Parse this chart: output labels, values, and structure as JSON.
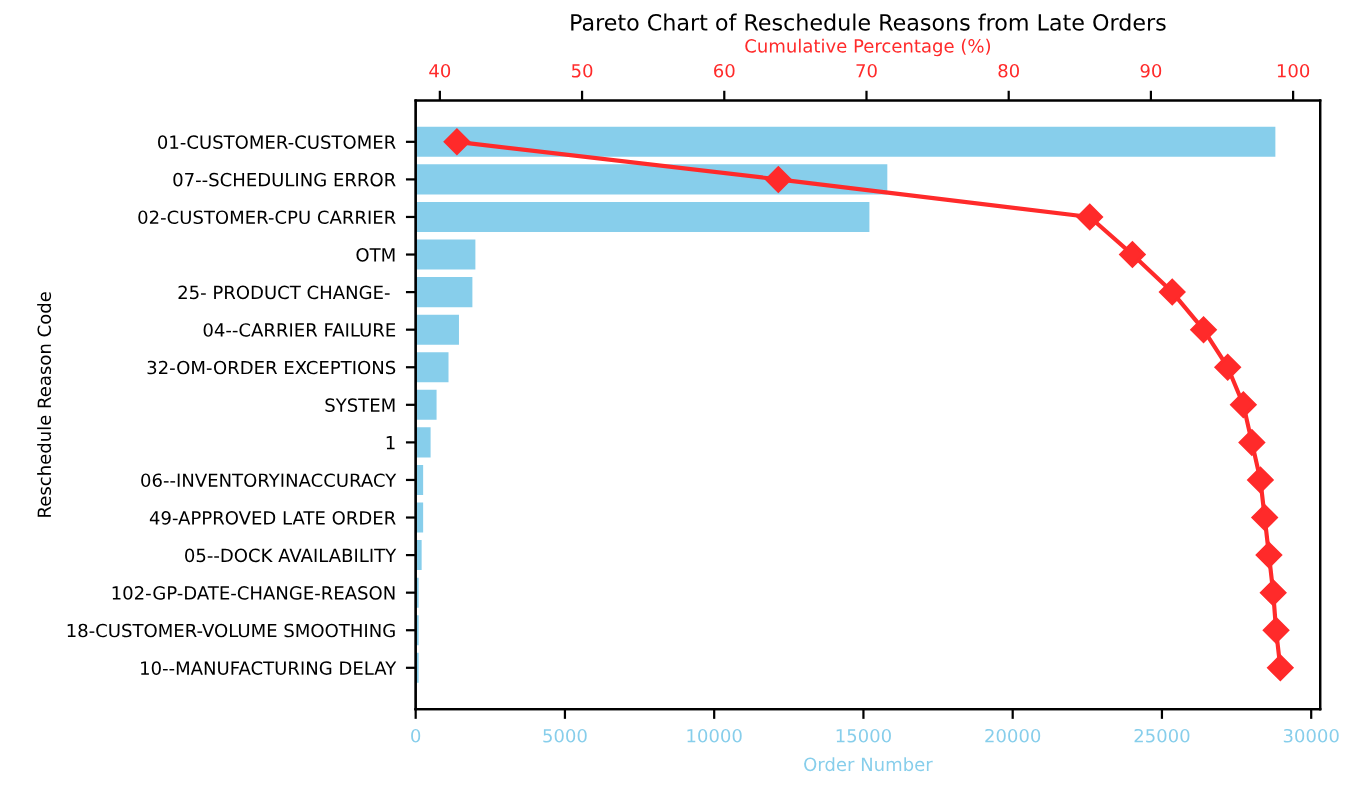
{
  "chart_data": {
    "type": "bar",
    "orientation": "horizontal",
    "title": "Pareto Chart of Reschedule Reasons from Late Orders",
    "xlabel": "Order Number",
    "ylabel": "Reschedule Reason Code",
    "x2label": "Cumulative Percentage (%)",
    "categories": [
      "01-CUSTOMER-CUSTOMER",
      "07--SCHEDULING ERROR",
      "02-CUSTOMER-CPU CARRIER",
      "OTM",
      "25- PRODUCT CHANGE- ",
      "04--CARRIER FAILURE",
      "32-OM-ORDER EXCEPTIONS",
      "SYSTEM",
      "1",
      "06--INVENTORYINACCURACY",
      "49-APPROVED LATE ORDER",
      "05--DOCK AVAILABILITY",
      "102-GP-DATE-CHANGE-REASON",
      "18-CUSTOMER-VOLUME SMOOTHING",
      "10--MANUFACTURING DELAY"
    ],
    "series": [
      {
        "type": "bar",
        "color": "#87ceeb",
        "values": [
          28800,
          15800,
          15200,
          2000,
          1900,
          1450,
          1100,
          700,
          500,
          250,
          250,
          200,
          100,
          100,
          100
        ]
      },
      {
        "type": "line",
        "axis": "x2",
        "color": "#ff2a2a",
        "marker": "diamond",
        "line_style": "solid",
        "values": [
          41.2,
          63.8,
          85.7,
          88.7,
          91.5,
          93.7,
          95.4,
          96.5,
          97.1,
          97.7,
          98.0,
          98.3,
          98.6,
          98.8,
          99.1
        ]
      }
    ],
    "xlim": [
      0,
      30300
    ],
    "xticks": [
      0,
      5000,
      10000,
      15000,
      20000,
      25000,
      30000
    ],
    "x2lim": [
      38.3,
      101.9
    ],
    "x2ticks": [
      40,
      50,
      60,
      70,
      80,
      90,
      100
    ],
    "grid": false
  }
}
